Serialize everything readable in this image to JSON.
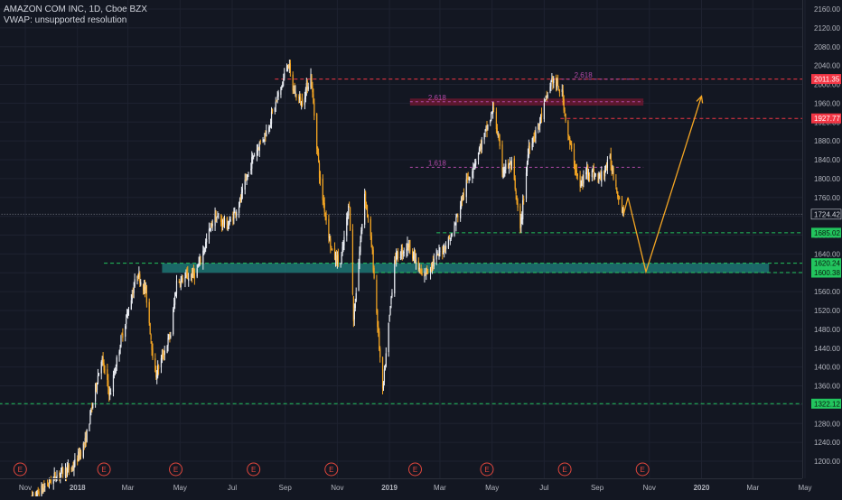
{
  "header": {
    "title": "AMAZON COM INC, 1D, Cboe BZX",
    "indicator": "VWAP: unsupported resolution"
  },
  "colors": {
    "background": "#131722",
    "grid": "#1e2230",
    "axis_text": "#b2b5be",
    "candle_up": "#e9ecf2",
    "candle_down": "#f5a623",
    "level_red": "#f23645",
    "level_green": "#22c55e",
    "zone_teal": "#1f8a85",
    "zone_red": "#7a1830",
    "fib": "#b04aa8",
    "projection": "#f5a623",
    "price_line": "#787b86",
    "earnings_marker": "#e0463c"
  },
  "chart_data": {
    "type": "candlestick",
    "symbol": "AMZN",
    "interval": "1D",
    "y_axis": {
      "side": "right",
      "ylim": [
        1170,
        2180
      ],
      "ticks": [
        1200,
        1240,
        1280,
        1320,
        1360,
        1400,
        1440,
        1480,
        1520,
        1560,
        1600,
        1640,
        1680,
        1720,
        1760,
        1800,
        1840,
        1880,
        1920,
        1960,
        2000,
        2040,
        2080,
        2120,
        2160
      ]
    },
    "x_axis": {
      "labels": [
        "Nov",
        "2018",
        "Mar",
        "May",
        "Jul",
        "Sep",
        "Nov",
        "2019",
        "Mar",
        "May",
        "Jul",
        "Sep",
        "Nov",
        "2020",
        "Mar",
        "May"
      ],
      "label_dates": [
        "2017-11-01",
        "2018-01-01",
        "2018-03-01",
        "2018-05-01",
        "2018-07-01",
        "2018-09-01",
        "2018-11-01",
        "2019-01-01",
        "2019-03-01",
        "2019-05-01",
        "2019-07-01",
        "2019-09-01",
        "2019-11-01",
        "2020-01-01",
        "2020-03-01",
        "2020-05-01"
      ]
    },
    "price_series": {
      "name": "AMZN",
      "points": [
        [
          "2017-11-01",
          1105
        ],
        [
          "2017-12-10",
          1175
        ],
        [
          "2017-12-26",
          1185
        ],
        [
          "2018-01-10",
          1240
        ],
        [
          "2018-01-29",
          1420
        ],
        [
          "2018-02-08",
          1340
        ],
        [
          "2018-02-20",
          1450
        ],
        [
          "2018-03-12",
          1600
        ],
        [
          "2018-03-22",
          1560
        ],
        [
          "2018-04-02",
          1380
        ],
        [
          "2018-04-10",
          1420
        ],
        [
          "2018-04-20",
          1470
        ],
        [
          "2018-04-27",
          1580
        ],
        [
          "2018-05-20",
          1600
        ],
        [
          "2018-06-10",
          1720
        ],
        [
          "2018-06-26",
          1700
        ],
        [
          "2018-07-10",
          1750
        ],
        [
          "2018-07-26",
          1850
        ],
        [
          "2018-08-10",
          1900
        ],
        [
          "2018-08-30",
          2010
        ],
        [
          "2018-09-04",
          2050
        ],
        [
          "2018-09-10",
          1990
        ],
        [
          "2018-09-20",
          1960
        ],
        [
          "2018-10-01",
          2020
        ],
        [
          "2018-10-12",
          1790
        ],
        [
          "2018-10-26",
          1640
        ],
        [
          "2018-11-05",
          1620
        ],
        [
          "2018-11-15",
          1750
        ],
        [
          "2018-11-20",
          1500
        ],
        [
          "2018-12-03",
          1770
        ],
        [
          "2018-12-12",
          1640
        ],
        [
          "2018-12-24",
          1343
        ],
        [
          "2019-01-07",
          1630
        ],
        [
          "2019-01-24",
          1660
        ],
        [
          "2019-02-08",
          1590
        ],
        [
          "2019-02-28",
          1640
        ],
        [
          "2019-03-15",
          1680
        ],
        [
          "2019-04-01",
          1790
        ],
        [
          "2019-04-24",
          1900
        ],
        [
          "2019-05-03",
          1950
        ],
        [
          "2019-05-13",
          1820
        ],
        [
          "2019-05-24",
          1830
        ],
        [
          "2019-06-03",
          1690
        ],
        [
          "2019-06-13",
          1870
        ],
        [
          "2019-06-24",
          1910
        ],
        [
          "2019-07-10",
          2011
        ],
        [
          "2019-07-22",
          1980
        ],
        [
          "2019-07-30",
          1880
        ],
        [
          "2019-08-12",
          1780
        ],
        [
          "2019-08-20",
          1820
        ],
        [
          "2019-09-04",
          1800
        ],
        [
          "2019-09-16",
          1840
        ],
        [
          "2019-09-25",
          1770
        ],
        [
          "2019-10-02",
          1725
        ]
      ]
    },
    "projection": {
      "name": "forecast path",
      "points": [
        [
          "2019-10-02",
          1725
        ],
        [
          "2019-10-07",
          1760
        ],
        [
          "2019-10-28",
          1602
        ],
        [
          "2020-01-01",
          1975
        ]
      ]
    },
    "price_labels": [
      {
        "value": "2011.35",
        "kind": "level_red"
      },
      {
        "value": "1927.77",
        "kind": "level_red"
      },
      {
        "value": "1724.42",
        "kind": "last_price"
      },
      {
        "value": "1685.02",
        "kind": "level_green"
      },
      {
        "value": "1620.24",
        "kind": "level_green"
      },
      {
        "value": "1600.38",
        "kind": "level_green"
      },
      {
        "value": "1322.12",
        "kind": "level_green"
      }
    ],
    "levels": [
      {
        "price": 2011.35,
        "style": "dashed",
        "color": "level_red",
        "from": "2018-08-20"
      },
      {
        "price": 1927.77,
        "style": "dashed",
        "color": "level_red",
        "from": "2019-07-20"
      },
      {
        "price": 1724.42,
        "style": "dotted",
        "color": "price_line",
        "from": "2017-10-01"
      },
      {
        "price": 1685.02,
        "style": "dashed",
        "color": "level_green",
        "from": "2019-02-25"
      },
      {
        "price": 1620.24,
        "style": "dashed",
        "color": "level_green",
        "from": "2018-02-01"
      },
      {
        "price": 1600.38,
        "style": "dashed",
        "color": "level_green",
        "from": "2018-12-15"
      },
      {
        "price": 1322.12,
        "style": "dashed",
        "color": "level_green",
        "from": "2017-10-01"
      }
    ],
    "zones": [
      {
        "from": "2018-04-10",
        "to": "2020-03-20",
        "low": 1600,
        "high": 1620,
        "color": "zone_teal"
      },
      {
        "from": "2019-01-25",
        "to": "2019-10-25",
        "low": 1955,
        "high": 1970,
        "color": "zone_red"
      }
    ],
    "fib_levels": [
      {
        "label": "2.618",
        "price": 2011,
        "from": "2019-07-15",
        "to": "2019-10-15"
      },
      {
        "label": "2.618",
        "price": 1963,
        "from": "2019-01-25",
        "to": "2019-10-25"
      },
      {
        "label": "1.618",
        "price": 1824,
        "from": "2019-01-25",
        "to": "2019-10-25"
      }
    ],
    "earnings_markers": [
      "2017-10-26",
      "2018-02-01",
      "2018-04-26",
      "2018-07-26",
      "2018-10-25",
      "2019-01-31",
      "2019-04-25",
      "2019-07-25",
      "2019-10-24"
    ],
    "earnings_label": "E"
  }
}
